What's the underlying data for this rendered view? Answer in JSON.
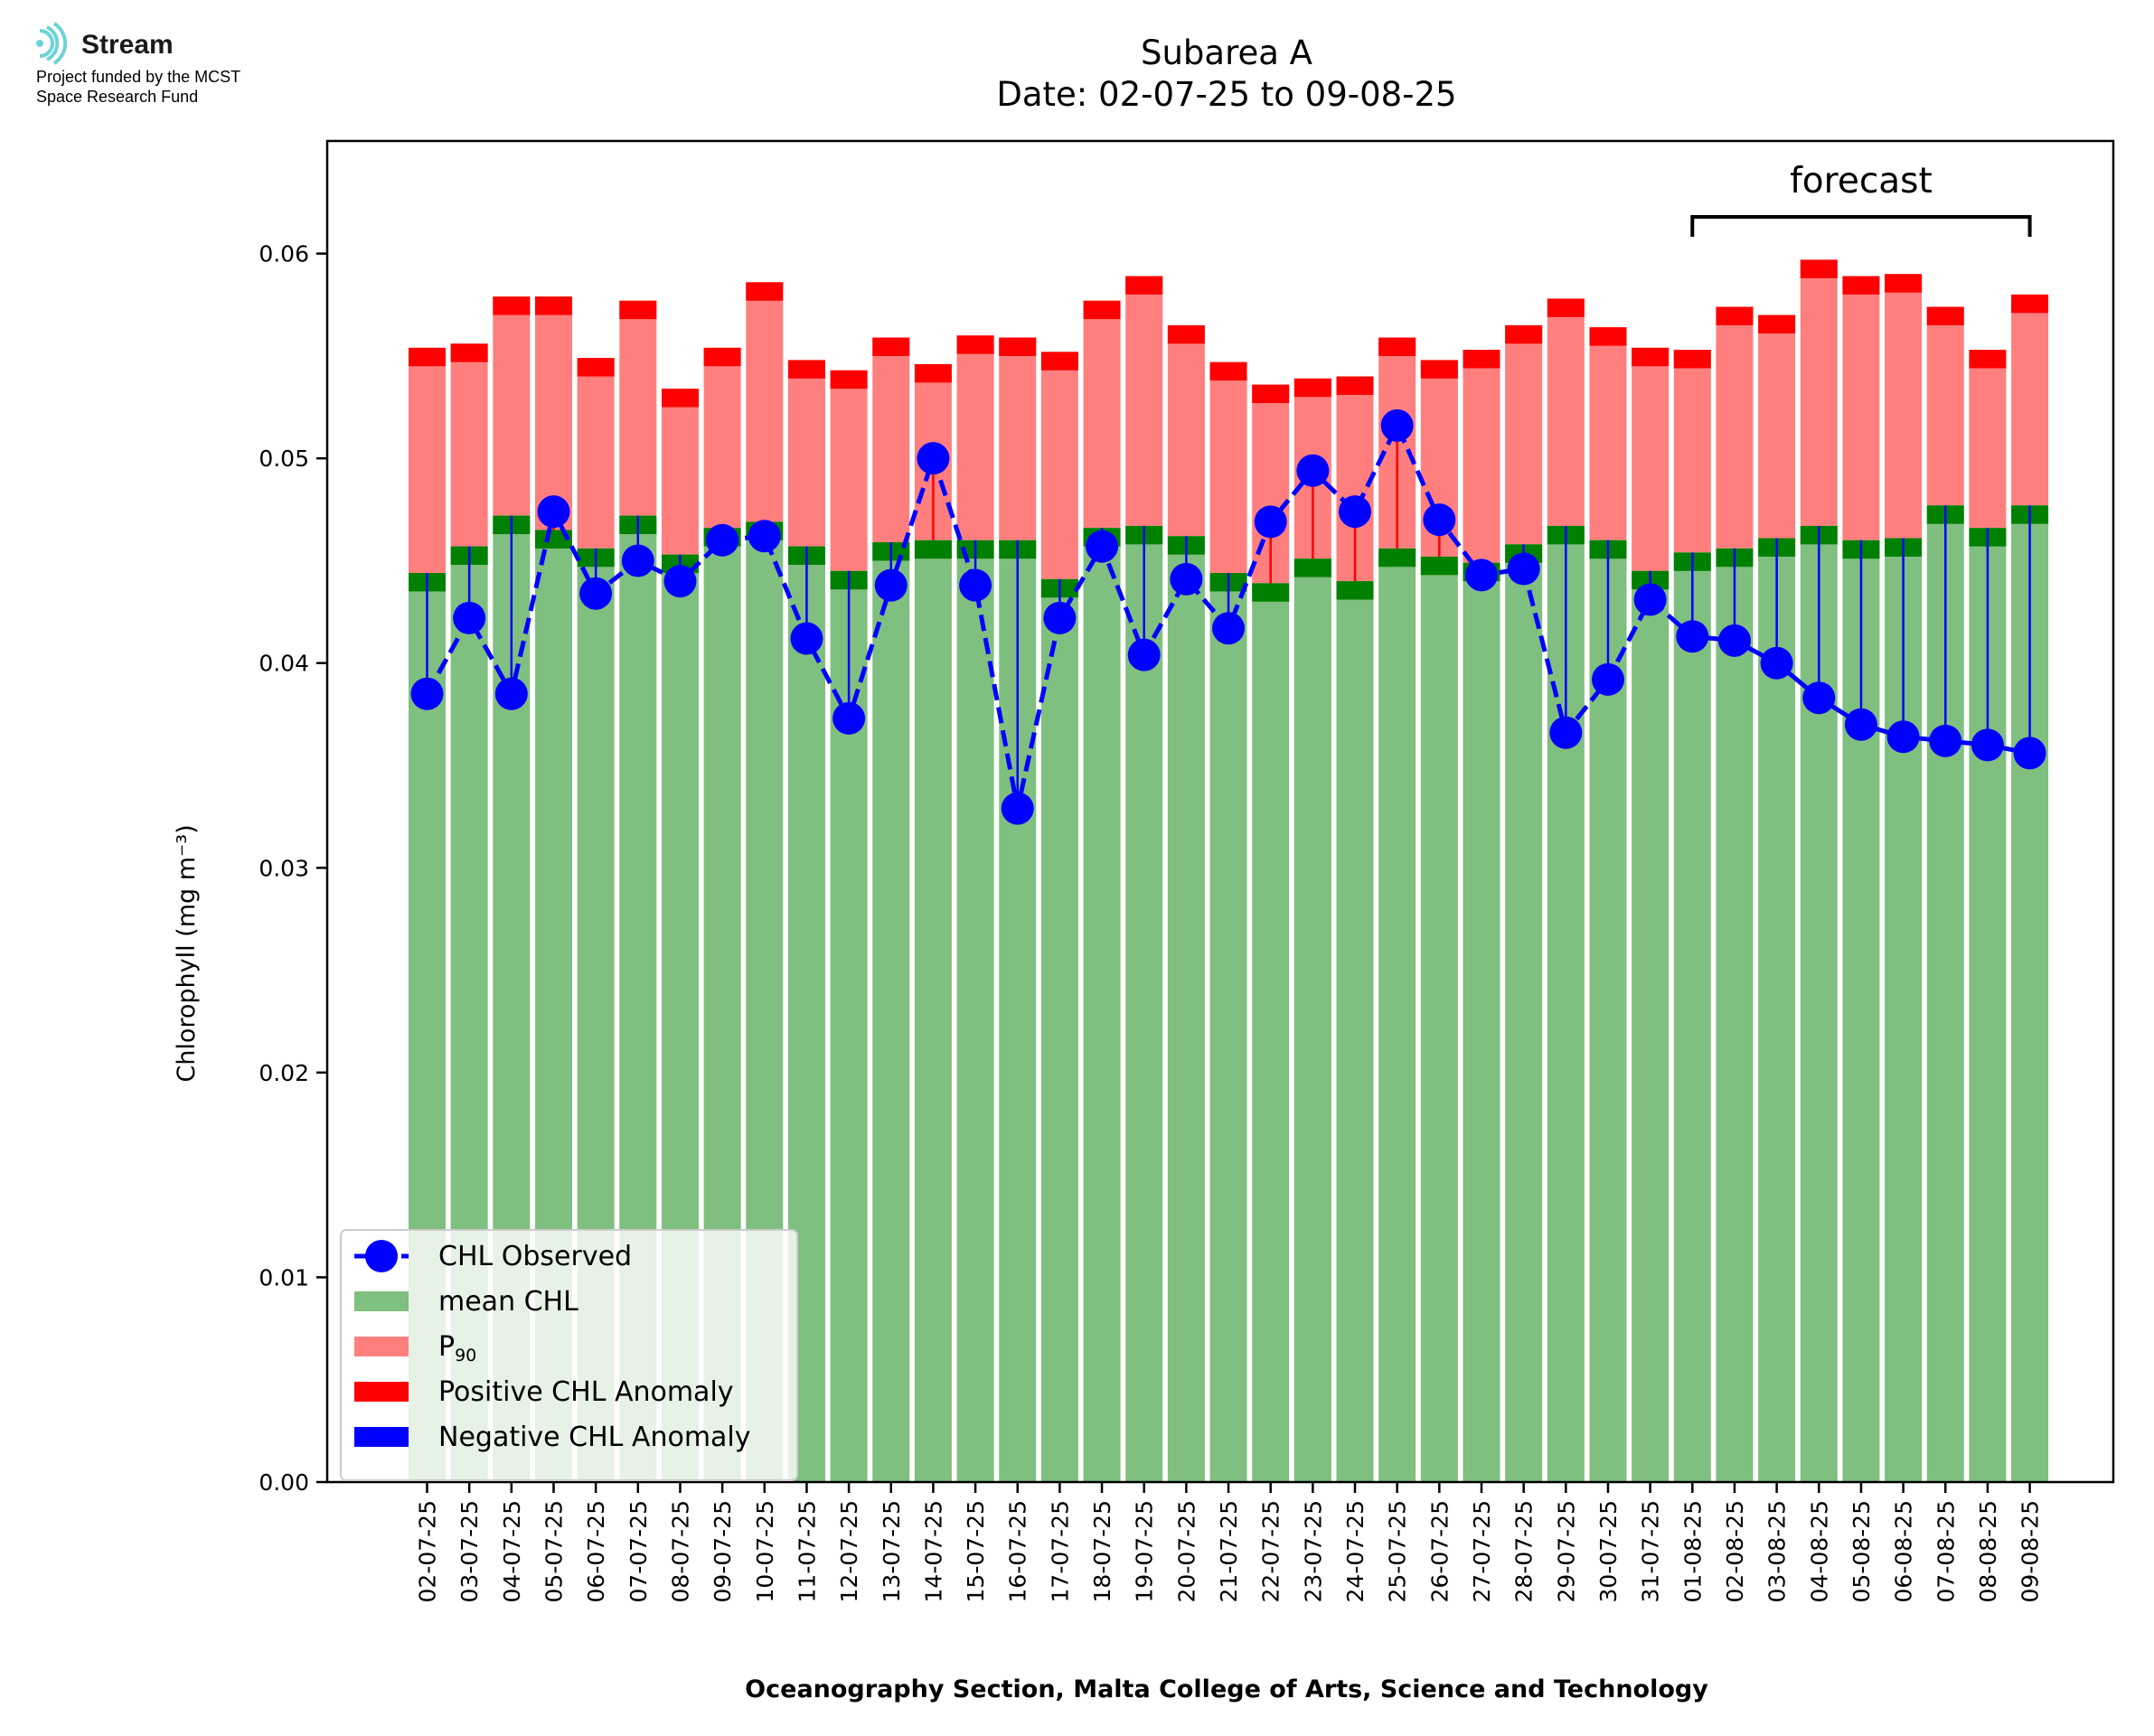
{
  "logo": {
    "name": "Stream",
    "line1": "Project funded by the MCST",
    "line2": "Space Research Fund"
  },
  "colors": {
    "mean": "#7fbf7f",
    "mean_cap": "#008000",
    "p90": "#ff7f7f",
    "p90_cap": "#ff0000",
    "observed": "#0000ff",
    "positive": "#ff0000",
    "negative": "#0000ff"
  },
  "chart_data": {
    "type": "bar",
    "title": "Subarea A",
    "subtitle": "Date: 02-07-25 to 09-08-25",
    "xlabel": "Oceanography Section, Malta College of Arts, Science and Technology",
    "ylabel": "Chlorophyll (mg m⁻³)",
    "ylim": [
      0,
      0.0655
    ],
    "yticks": [
      "0.00",
      "0.01",
      "0.02",
      "0.03",
      "0.04",
      "0.05",
      "0.06"
    ],
    "grid": false,
    "legend_position": "lower-left",
    "annotation": "forecast",
    "forecast_range": [
      "01-08-25",
      "09-08-25"
    ],
    "categories": [
      "02-07-25",
      "03-07-25",
      "04-07-25",
      "05-07-25",
      "06-07-25",
      "07-07-25",
      "08-07-25",
      "09-07-25",
      "10-07-25",
      "11-07-25",
      "12-07-25",
      "13-07-25",
      "14-07-25",
      "15-07-25",
      "16-07-25",
      "17-07-25",
      "18-07-25",
      "19-07-25",
      "20-07-25",
      "21-07-25",
      "22-07-25",
      "23-07-25",
      "24-07-25",
      "25-07-25",
      "26-07-25",
      "27-07-25",
      "28-07-25",
      "29-07-25",
      "30-07-25",
      "31-07-25",
      "01-08-25",
      "02-08-25",
      "03-08-25",
      "04-08-25",
      "05-08-25",
      "06-08-25",
      "07-08-25",
      "08-08-25",
      "09-08-25"
    ],
    "series": [
      {
        "name": "mean CHL",
        "legend": "mean CHL",
        "values": [
          0.0444,
          0.0457,
          0.0472,
          0.0465,
          0.0456,
          0.0472,
          0.0453,
          0.0466,
          0.0469,
          0.0457,
          0.0445,
          0.0459,
          0.046,
          0.046,
          0.046,
          0.0441,
          0.0466,
          0.0467,
          0.0462,
          0.0444,
          0.0439,
          0.0451,
          0.044,
          0.0456,
          0.0452,
          0.0449,
          0.0458,
          0.0467,
          0.046,
          0.0445,
          0.0454,
          0.0456,
          0.0461,
          0.0467,
          0.046,
          0.0461,
          0.0477,
          0.0466,
          0.0477
        ]
      },
      {
        "name": "P90",
        "legend_main": "P",
        "legend_sub": "90",
        "values": [
          0.0554,
          0.0556,
          0.0579,
          0.0579,
          0.0549,
          0.0577,
          0.0534,
          0.0554,
          0.0586,
          0.0548,
          0.0543,
          0.0559,
          0.0546,
          0.056,
          0.0559,
          0.0552,
          0.0577,
          0.0589,
          0.0565,
          0.0547,
          0.0536,
          0.0539,
          0.054,
          0.0559,
          0.0548,
          0.0553,
          0.0565,
          0.0578,
          0.0564,
          0.0554,
          0.0553,
          0.0574,
          0.057,
          0.0597,
          0.0589,
          0.059,
          0.0574,
          0.0553,
          0.058
        ]
      },
      {
        "name": "CHL Observed",
        "legend": "CHL Observed",
        "values": [
          0.0385,
          0.0422,
          0.0385,
          0.0474,
          0.0434,
          0.045,
          0.044,
          0.046,
          0.0462,
          0.0412,
          0.0373,
          0.0438,
          0.05,
          0.0438,
          0.0329,
          0.0422,
          0.0457,
          0.0404,
          0.0441,
          0.0417,
          0.0469,
          0.0494,
          0.0474,
          0.0516,
          0.047,
          0.0443,
          0.0446,
          0.0366,
          0.0392,
          0.0431,
          0.0413,
          0.0411,
          0.04,
          0.0383,
          0.037,
          0.0364,
          0.0362,
          0.036,
          0.0356
        ]
      },
      {
        "name": "Positive CHL Anomaly",
        "legend": "Positive CHL Anomaly"
      },
      {
        "name": "Negative CHL Anomaly",
        "legend": "Negative CHL Anomaly"
      }
    ]
  }
}
